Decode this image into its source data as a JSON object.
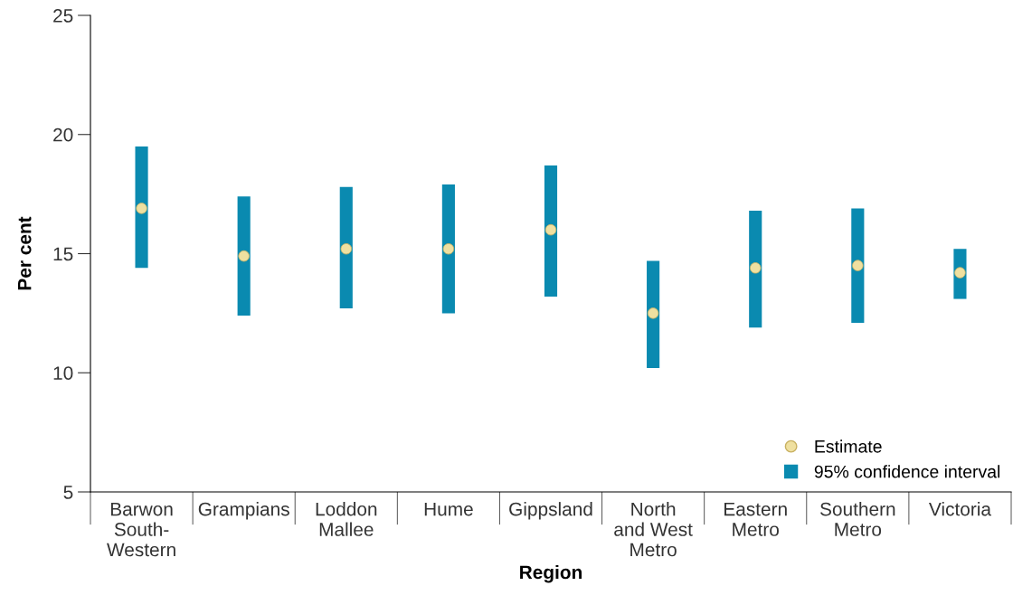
{
  "chart_data": {
    "type": "bar",
    "xlabel": "Region",
    "ylabel": "Per cent",
    "categories": [
      "Barwon\nSouth-\nWestern",
      "Grampians",
      "Loddon\nMallee",
      "Hume",
      "Gippsland",
      "North\nand West\nMetro",
      "Eastern\nMetro",
      "Southern\nMetro",
      "Victoria"
    ],
    "series": [
      {
        "name": "95% confidence interval",
        "color": "#0a8ab0",
        "base": [
          14.4,
          12.4,
          12.7,
          12.5,
          13.2,
          10.2,
          11.9,
          12.1,
          13.1
        ],
        "values": [
          5.1,
          5.0,
          5.1,
          5.4,
          5.5,
          4.5,
          4.9,
          4.8,
          2.1
        ]
      },
      {
        "name": "Estimate",
        "type": "scatter",
        "color": "#efe0a0",
        "marker": "circle",
        "values": [
          16.9,
          14.9,
          15.2,
          15.2,
          16.0,
          12.5,
          14.4,
          14.5,
          14.2
        ]
      }
    ],
    "ylim": [
      5,
      25
    ],
    "yticks": [
      5,
      10,
      15,
      20,
      25
    ],
    "grid": false,
    "legend": "bottom right"
  }
}
